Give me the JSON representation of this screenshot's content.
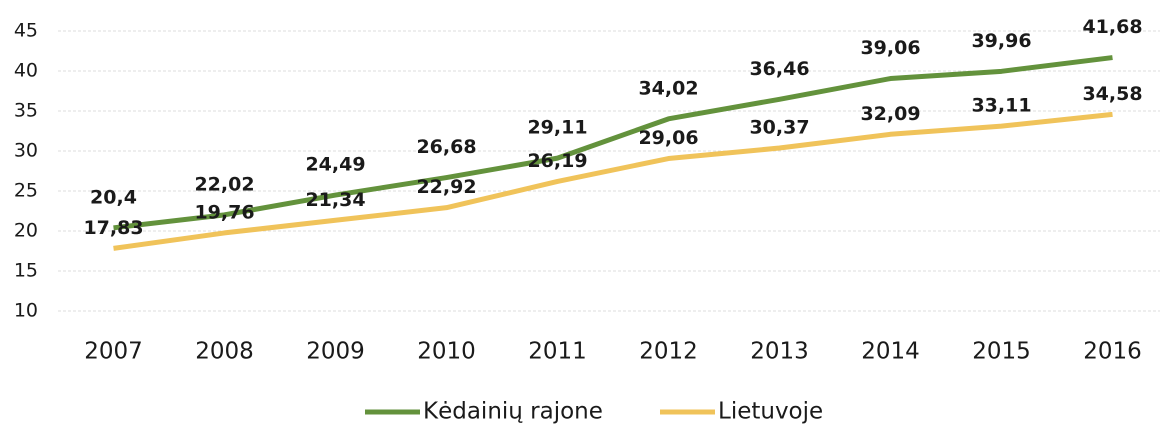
{
  "chart_data": {
    "type": "line",
    "categories": [
      "2007",
      "2008",
      "2009",
      "2010",
      "2011",
      "2012",
      "2013",
      "2014",
      "2015",
      "2016"
    ],
    "series": [
      {
        "name": "Kėdainių rajone",
        "color": "#63923c",
        "values": [
          20.4,
          22.02,
          24.49,
          26.68,
          29.11,
          34.02,
          36.46,
          39.06,
          39.96,
          41.68
        ],
        "value_labels": [
          "20,4",
          "22,02",
          "24,49",
          "26,68",
          "29,11",
          "34,02",
          "36,46",
          "39,06",
          "39,96",
          "41,68"
        ]
      },
      {
        "name": "Lietuvoje",
        "color": "#f0c35a",
        "values": [
          17.83,
          19.76,
          21.34,
          22.92,
          26.19,
          29.06,
          30.37,
          32.09,
          33.11,
          34.58
        ],
        "value_labels": [
          "17,83",
          "19,76",
          "21,34",
          "22,92",
          "26,19",
          "29,06",
          "30,37",
          "32,09",
          "33,11",
          "34,58"
        ]
      }
    ],
    "ylim": [
      10,
      45
    ],
    "yticks": [
      10,
      15,
      20,
      25,
      30,
      35,
      40,
      45
    ],
    "grid": true,
    "legend": "bottom"
  }
}
